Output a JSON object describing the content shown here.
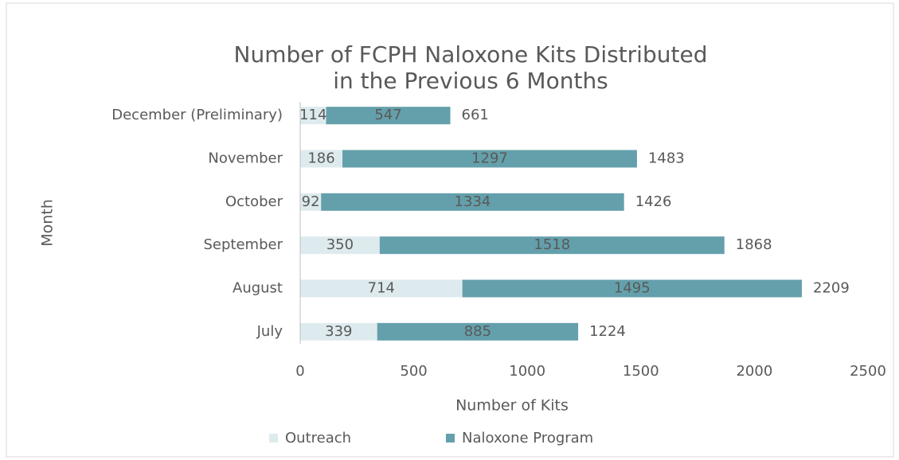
{
  "chart_data": {
    "type": "stacked-bar-horizontal",
    "title": [
      "Number of FCPH Naloxone Kits Distributed",
      "in the Previous 6 Months"
    ],
    "x_label": "Number of Kits",
    "y_label": "Month",
    "categories": [
      "December (Preliminary)",
      "November",
      "October",
      "September",
      "August",
      "July"
    ],
    "series": [
      {
        "name": "Outreach",
        "color": "#deebee",
        "values": [
          114,
          186,
          92,
          350,
          714,
          339
        ]
      },
      {
        "name": "Naloxone Program",
        "color": "#64a0ab",
        "values": [
          547,
          1297,
          1334,
          1518,
          1495,
          885
        ]
      }
    ],
    "totals": [
      661,
      1483,
      1426,
      1868,
      2209,
      1224
    ],
    "xlim": [
      0,
      2500
    ],
    "xticks": [
      0,
      500,
      1000,
      1500,
      2000,
      2500
    ],
    "legend": "bottom"
  }
}
